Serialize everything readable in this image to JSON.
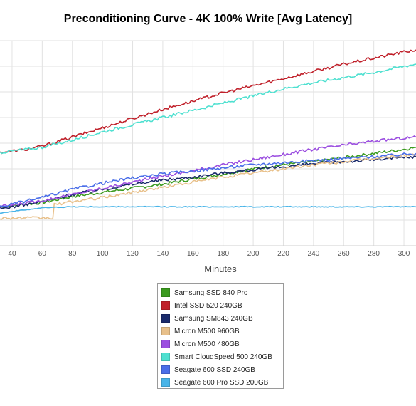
{
  "chart_data": {
    "type": "line",
    "title": "Preconditioning Curve - 4K 100% Write [Avg Latency]",
    "xlabel": "Minutes",
    "ylabel": "",
    "x_ticks": [
      40,
      60,
      80,
      100,
      120,
      140,
      160,
      180,
      200,
      220,
      240,
      260,
      280,
      300
    ],
    "xlim": [
      32,
      308
    ],
    "ylim": [
      0,
      10
    ],
    "grid": true,
    "legend_position": "bottom",
    "series": [
      {
        "name": "Samsung SSD 840 Pro",
        "color": "#3a9a1e",
        "x": [
          32,
          60,
          80,
          100,
          120,
          140,
          160,
          180,
          200,
          220,
          240,
          260,
          280,
          300,
          308
        ],
        "y": [
          1.9,
          2.1,
          2.4,
          2.6,
          2.8,
          3.0,
          3.25,
          3.5,
          3.75,
          3.95,
          4.1,
          4.3,
          4.5,
          4.7,
          4.8
        ]
      },
      {
        "name": "Intel SSD 520 240GB",
        "color": "#c0202a",
        "x": [
          32,
          50,
          60,
          80,
          100,
          120,
          140,
          160,
          180,
          200,
          220,
          240,
          260,
          280,
          300,
          308
        ],
        "y": [
          4.55,
          4.7,
          4.85,
          5.3,
          5.75,
          6.2,
          6.65,
          7.05,
          7.45,
          7.8,
          8.15,
          8.5,
          8.85,
          9.15,
          9.45,
          9.55
        ]
      },
      {
        "name": "Samsung SM843 240GB",
        "color": "#1a2a6b",
        "x": [
          32,
          60,
          80,
          100,
          120,
          140,
          160,
          180,
          200,
          220,
          240,
          260,
          280,
          300,
          308
        ],
        "y": [
          1.8,
          2.15,
          2.5,
          2.75,
          3.0,
          3.2,
          3.35,
          3.55,
          3.7,
          3.85,
          4.0,
          4.1,
          4.2,
          4.3,
          4.35
        ]
      },
      {
        "name": "Micron M500 960GB",
        "color": "#e8c08a",
        "x": [
          32,
          67,
          68,
          80,
          100,
          120,
          140,
          160,
          180,
          200,
          220,
          240,
          260,
          280,
          300,
          308
        ],
        "y": [
          1.35,
          1.35,
          2.0,
          2.15,
          2.35,
          2.6,
          2.85,
          3.1,
          3.35,
          3.55,
          3.75,
          3.95,
          4.1,
          4.25,
          4.4,
          4.45
        ]
      },
      {
        "name": "Micron M500 480GB",
        "color": "#9b4ee0",
        "x": [
          32,
          60,
          80,
          100,
          120,
          140,
          160,
          180,
          200,
          220,
          240,
          260,
          280,
          300,
          308
        ],
        "y": [
          1.9,
          2.2,
          2.5,
          2.8,
          3.1,
          3.4,
          3.65,
          3.95,
          4.2,
          4.45,
          4.7,
          4.9,
          5.1,
          5.25,
          5.3
        ]
      },
      {
        "name": "Smart CloudSpeed 500 240GB",
        "color": "#4ee0d0",
        "x": [
          32,
          50,
          60,
          80,
          100,
          120,
          140,
          160,
          180,
          200,
          220,
          240,
          260,
          280,
          300,
          308
        ],
        "y": [
          4.55,
          4.7,
          4.8,
          5.15,
          5.55,
          5.9,
          6.25,
          6.6,
          6.95,
          7.3,
          7.65,
          7.95,
          8.2,
          8.45,
          8.75,
          8.85
        ]
      },
      {
        "name": "Seagate 600 SSD 240GB",
        "color": "#4a6ee8",
        "x": [
          32,
          60,
          80,
          100,
          120,
          140,
          160,
          180,
          200,
          220,
          240,
          260,
          280,
          300,
          308
        ],
        "y": [
          1.9,
          2.35,
          2.75,
          3.05,
          3.3,
          3.5,
          3.65,
          3.8,
          3.95,
          4.05,
          4.15,
          4.25,
          4.35,
          4.45,
          4.5
        ]
      },
      {
        "name": "Seagate 600 Pro SSD 200GB",
        "color": "#48b4e8",
        "x": [
          32,
          60,
          80,
          100,
          120,
          140,
          160,
          180,
          200,
          220,
          240,
          260,
          280,
          300,
          308
        ],
        "y": [
          1.6,
          1.85,
          1.9,
          1.9,
          1.9,
          1.9,
          1.9,
          1.9,
          1.9,
          1.9,
          1.9,
          1.9,
          1.9,
          1.9,
          1.9
        ]
      }
    ]
  }
}
